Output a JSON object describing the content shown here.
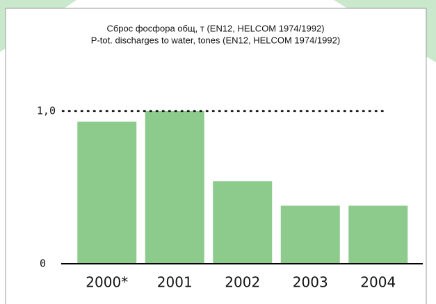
{
  "chart_data": {
    "type": "bar",
    "title": "Сброс фосфора общ, т (EN12, HELCOM 1974/1992)",
    "subtitle": "P-tot. discharges to water, tones (EN12, HELCOM 1974/1992)",
    "categories": [
      "2000*",
      "2001",
      "2002",
      "2003",
      "2004"
    ],
    "values": [
      0.93,
      1.0,
      0.54,
      0.38,
      0.38
    ],
    "color": "#8dcb8d",
    "ylim": [
      0,
      1
    ],
    "yticks": [
      0,
      {
        "value": 1,
        "label": "1,0"
      }
    ],
    "grid": true
  }
}
